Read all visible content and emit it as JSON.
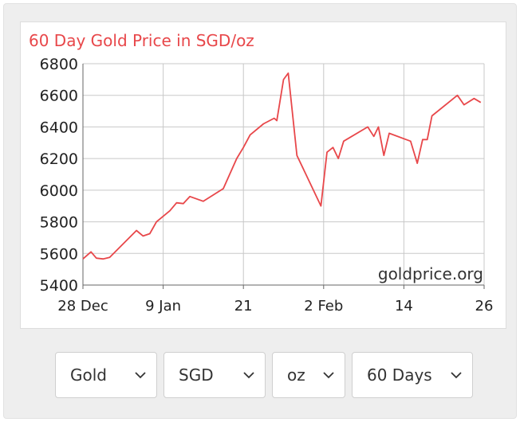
{
  "chart_data": {
    "type": "line",
    "title": "60 Day Gold Price in SGD/oz",
    "watermark": "goldprice.org",
    "ylim": [
      5400,
      6800
    ],
    "yticks": [
      5400,
      5600,
      5800,
      6000,
      6200,
      6400,
      6600,
      6800
    ],
    "xlim": [
      0,
      60
    ],
    "xticks": [
      {
        "day": 0,
        "label": "28 Dec"
      },
      {
        "day": 12,
        "label": "9 Jan"
      },
      {
        "day": 24,
        "label": "21"
      },
      {
        "day": 36,
        "label": "2 Feb"
      },
      {
        "day": 48,
        "label": "14"
      },
      {
        "day": 60,
        "label": "26"
      }
    ],
    "grid": true,
    "line_color": "#e8474a",
    "title_color": "#e8474a",
    "series": [
      {
        "x": [
          0,
          1.2,
          2,
          3,
          4,
          6,
          8,
          9,
          10,
          11,
          13,
          14,
          15,
          16,
          18,
          21,
          23,
          24,
          25,
          27,
          28.6,
          29,
          30,
          30.7,
          32,
          35.6,
          36.5,
          37.4,
          38.2,
          39,
          42.6,
          43.5,
          44.2,
          45,
          45.8,
          49,
          50,
          50.8,
          51.5,
          52.2,
          56,
          57,
          58.5,
          59.5
        ],
        "y": [
          5565,
          5610,
          5570,
          5565,
          5575,
          5660,
          5745,
          5710,
          5725,
          5800,
          5870,
          5920,
          5915,
          5960,
          5930,
          6010,
          6200,
          6270,
          6350,
          6420,
          6455,
          6440,
          6700,
          6740,
          6220,
          5900,
          6240,
          6270,
          6200,
          6310,
          6400,
          6340,
          6400,
          6220,
          6360,
          6310,
          6170,
          6320,
          6320,
          6470,
          6600,
          6540,
          6580,
          6555
        ]
      }
    ]
  },
  "controls": [
    {
      "name": "metal-select",
      "value": "Gold",
      "width": 128
    },
    {
      "name": "currency-select",
      "value": "SGD",
      "width": 128
    },
    {
      "name": "unit-select",
      "value": "oz",
      "width": 92
    },
    {
      "name": "period-select",
      "value": "60 Days",
      "width": 152
    }
  ]
}
